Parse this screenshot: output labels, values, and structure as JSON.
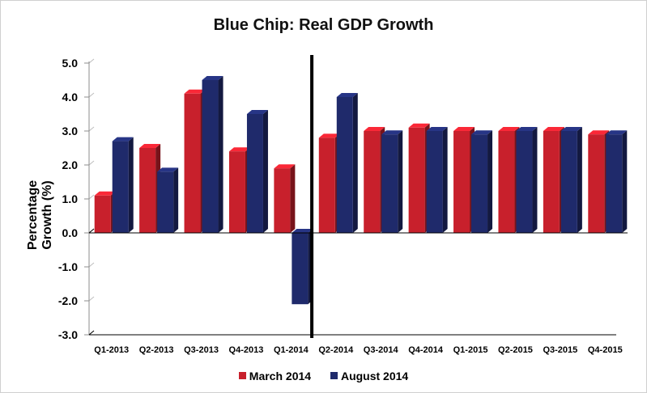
{
  "chart_data": {
    "type": "bar",
    "title": "Blue Chip:  Real GDP Growth",
    "ylabel": "Percentage Growth (%)",
    "xlabel": "",
    "categories": [
      "Q1-2013",
      "Q2-2013",
      "Q3-2013",
      "Q4-2013",
      "Q1-2014",
      "Q2-2014",
      "Q3-2014",
      "Q4-2014",
      "Q1-2015",
      "Q2-2015",
      "Q3-2015",
      "Q4-2015"
    ],
    "series": [
      {
        "name": "March 2014",
        "color": "#c8202c",
        "values": [
          1.1,
          2.5,
          4.1,
          2.4,
          1.9,
          2.8,
          3.0,
          3.1,
          3.0,
          3.0,
          3.0,
          2.9
        ]
      },
      {
        "name": "August 2014",
        "color": "#1f2a6b",
        "values": [
          2.7,
          1.8,
          4.5,
          3.5,
          -2.1,
          4.0,
          2.9,
          3.0,
          2.9,
          3.0,
          3.0,
          2.9
        ]
      }
    ],
    "ylim": [
      -3.0,
      5.0
    ],
    "yticks": [
      "5.0",
      "4.0",
      "3.0",
      "2.0",
      "1.0",
      "0.0",
      "-1.0",
      "-2.0",
      "-3.0"
    ],
    "yticks_values": [
      5,
      4,
      3,
      2,
      1,
      0,
      -1,
      -2,
      -3
    ],
    "divider_after_category": "Q1-2014",
    "grid": false,
    "legend_position": "bottom"
  }
}
